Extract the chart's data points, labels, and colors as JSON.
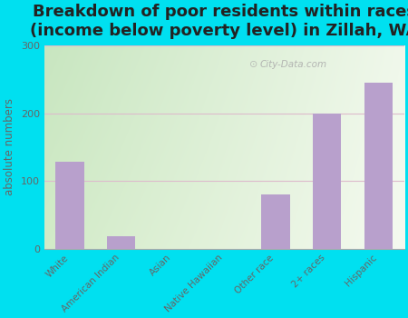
{
  "title": "Breakdown of poor residents within races\n(income below poverty level) in Zillah, WA",
  "categories": [
    "White",
    "American Indian",
    "Asian",
    "Native Hawaiian",
    "Other race",
    "2+ races",
    "Hispanic"
  ],
  "values": [
    128,
    18,
    0,
    0,
    80,
    200,
    245
  ],
  "bar_color": "#b8a0cc",
  "ylabel": "absolute numbers",
  "ylim": [
    0,
    300
  ],
  "yticks": [
    0,
    100,
    200,
    300
  ],
  "background_outer": "#00e0f0",
  "background_inner_topleft": "#c8e6c0",
  "background_inner_right": "#f0f4e8",
  "title_fontsize": 13,
  "title_fontweight": "bold",
  "title_color": "#222222",
  "tick_color": "#666666",
  "grid_color": "#ddbbcc",
  "watermark": "City-Data.com"
}
